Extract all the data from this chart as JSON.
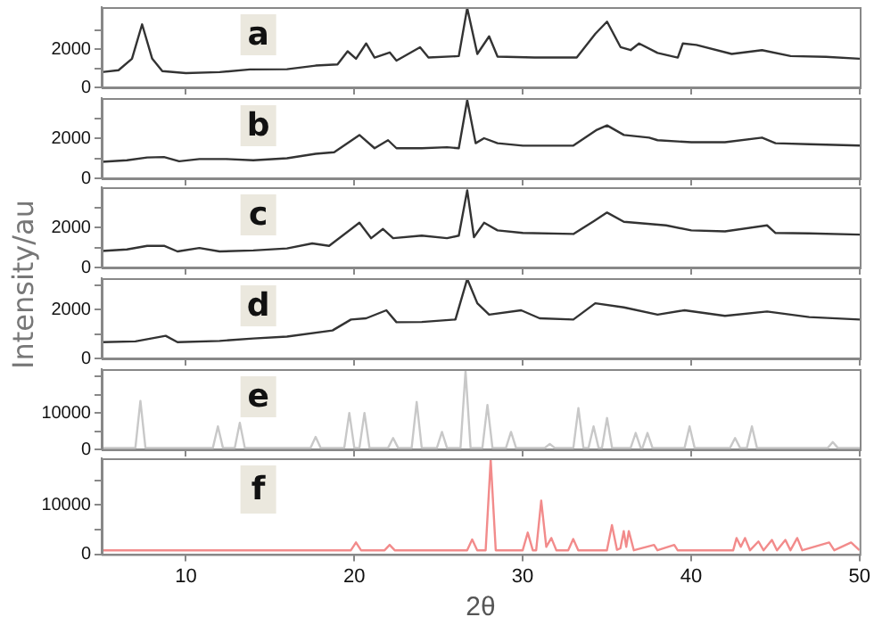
{
  "chart_data": [
    {
      "type": "line",
      "ylabel": "Intensity/au",
      "annotations": [
        "a"
      ],
      "color": "#333333",
      "xlim": [
        5,
        50
      ],
      "xticks": [
        10,
        20,
        30,
        40,
        50
      ],
      "ylim": [
        0,
        4200
      ],
      "yticks": [
        0,
        {
          "value": 1000,
          "label": null
        },
        2000,
        {
          "value": 3000,
          "label": null
        }
      ],
      "grid": false,
      "tick_labels": "y",
      "x": [
        5,
        6,
        6.8,
        7.4,
        8.0,
        8.6,
        10,
        12,
        13.8,
        16,
        17.7,
        19,
        19.6,
        20.1,
        20.7,
        21.2,
        22.1,
        22.5,
        23.9,
        24.4,
        26.2,
        26.7,
        27.3,
        28.0,
        28.5,
        30.7,
        33.2,
        34.3,
        35.0,
        35.8,
        36.4,
        36.9,
        38,
        39.2,
        39.5,
        40.3,
        42.4,
        44.2,
        45.9,
        48,
        50
      ],
      "values": [
        800,
        900,
        1500,
        3300,
        1500,
        850,
        750,
        800,
        940,
        950,
        1140,
        1200,
        1890,
        1500,
        2300,
        1560,
        1830,
        1400,
        2100,
        1560,
        1640,
        4150,
        1750,
        2670,
        1610,
        1560,
        1560,
        2800,
        3440,
        2110,
        1950,
        2300,
        1800,
        1560,
        2300,
        2220,
        1750,
        1950,
        1640,
        1600,
        1500
      ]
    },
    {
      "type": "line",
      "annotations": [
        "b"
      ],
      "color": "#333333",
      "xlim": [
        5,
        50
      ],
      "xticks": [
        10,
        20,
        30,
        40,
        50
      ],
      "ylim": [
        0,
        4000
      ],
      "yticks": [
        0,
        {
          "value": 1000,
          "label": null
        },
        2000,
        {
          "value": 3000,
          "label": null
        }
      ],
      "grid": false,
      "tick_labels": "y",
      "x": [
        5,
        6.5,
        7.7,
        8.7,
        9.6,
        10.8,
        12.4,
        14,
        16,
        17.7,
        18.8,
        20.3,
        21.2,
        22.0,
        22.5,
        24,
        25.5,
        26.2,
        26.7,
        27.2,
        27.7,
        28.5,
        30,
        33,
        34.4,
        35.0,
        36,
        37.5,
        38,
        40,
        42,
        44.2,
        45,
        47,
        50
      ],
      "values": [
        820,
        900,
        1040,
        1060,
        850,
        960,
        960,
        900,
        1000,
        1220,
        1300,
        2160,
        1500,
        1900,
        1500,
        1500,
        1550,
        1500,
        3900,
        1750,
        2000,
        1750,
        1630,
        1630,
        2420,
        2640,
        2160,
        2030,
        1900,
        1800,
        1800,
        2030,
        1750,
        1700,
        1630
      ]
    },
    {
      "type": "line",
      "annotations": [
        "c"
      ],
      "color": "#333333",
      "xlim": [
        5,
        50
      ],
      "xticks": [
        10,
        20,
        30,
        40,
        50
      ],
      "ylim": [
        0,
        4000
      ],
      "yticks": [
        0,
        {
          "value": 1000,
          "label": null
        },
        2000,
        {
          "value": 3000,
          "label": null
        }
      ],
      "grid": false,
      "tick_labels": "y",
      "x": [
        5,
        6.5,
        7.7,
        8.7,
        9.5,
        10.8,
        12,
        14,
        16,
        17.5,
        18.5,
        20.3,
        21.0,
        21.7,
        22.3,
        24,
        25.5,
        26.2,
        26.7,
        27.1,
        27.7,
        28.5,
        30,
        33,
        34.2,
        35.0,
        36,
        38.5,
        40,
        42,
        44.5,
        45,
        47,
        50
      ],
      "values": [
        820,
        900,
        1080,
        1080,
        800,
        970,
        800,
        850,
        950,
        1200,
        1080,
        2230,
        1460,
        1920,
        1460,
        1590,
        1460,
        1590,
        3850,
        1510,
        2230,
        1850,
        1720,
        1670,
        2300,
        2740,
        2280,
        2100,
        1850,
        1800,
        2100,
        1720,
        1700,
        1640
      ]
    },
    {
      "type": "line",
      "annotations": [
        "d"
      ],
      "color": "#333333",
      "xlim": [
        5,
        50
      ],
      "xticks": [
        10,
        20,
        30,
        40,
        50
      ],
      "ylim": [
        0,
        3300
      ],
      "yticks": [
        0,
        {
          "value": 1000,
          "label": null
        },
        2000,
        {
          "value": 3000,
          "label": null
        }
      ],
      "grid": false,
      "tick_labels": "y",
      "x": [
        5,
        7,
        8.8,
        9.5,
        12,
        14,
        16,
        18.7,
        19.8,
        20.7,
        21.9,
        22.5,
        24,
        26,
        26.7,
        27.3,
        28,
        29.9,
        31,
        33,
        34.3,
        36,
        38,
        39.6,
        42,
        44.5,
        47,
        50
      ],
      "values": [
        670,
        700,
        930,
        670,
        720,
        820,
        900,
        1150,
        1600,
        1650,
        1980,
        1490,
        1500,
        1600,
        3270,
        2270,
        1800,
        1980,
        1650,
        1600,
        2270,
        2100,
        1800,
        1980,
        1750,
        1930,
        1700,
        1600
      ]
    },
    {
      "type": "line",
      "annotations": [
        "e"
      ],
      "color": "#c8c8c8",
      "xlim": [
        5,
        50
      ],
      "xticks": [
        10,
        20,
        30,
        40,
        50
      ],
      "ylim": [
        0,
        22000
      ],
      "yticks": [
        0,
        {
          "value": 5000,
          "label": null
        },
        10000,
        {
          "value": 15000,
          "label": null
        },
        {
          "value": 20000,
          "label": null
        }
      ],
      "grid": false,
      "tick_labels": "y",
      "x": [
        5,
        7.0,
        7.3,
        7.6,
        11.6,
        11.9,
        12.2,
        12.9,
        13.2,
        13.5,
        17.4,
        17.7,
        18.0,
        19.4,
        19.7,
        20.0,
        20.3,
        20.6,
        20.9,
        22.0,
        22.3,
        22.6,
        23.4,
        23.7,
        24.0,
        24.9,
        25.2,
        25.5,
        26.3,
        26.6,
        26.9,
        27.6,
        27.9,
        28.2,
        29.0,
        29.3,
        29.6,
        31.3,
        31.6,
        31.9,
        33.0,
        33.3,
        33.6,
        33.9,
        34.2,
        34.5,
        34.7,
        35.0,
        35.3,
        36.4,
        36.7,
        37.0,
        37.1,
        37.4,
        37.7,
        39.6,
        39.9,
        40.2,
        42.3,
        42.6,
        42.9,
        43.3,
        43.6,
        43.9,
        48.1,
        48.4,
        48.7,
        50
      ],
      "values": [
        400,
        400,
        13300,
        400,
        400,
        6300,
        400,
        400,
        7300,
        400,
        400,
        3400,
        400,
        400,
        10000,
        400,
        400,
        10000,
        400,
        400,
        3100,
        400,
        400,
        13000,
        400,
        400,
        4800,
        400,
        400,
        21500,
        400,
        400,
        12200,
        400,
        400,
        4800,
        400,
        400,
        1500,
        400,
        400,
        11300,
        400,
        400,
        6300,
        400,
        400,
        8600,
        400,
        400,
        4500,
        400,
        400,
        4500,
        400,
        400,
        6300,
        400,
        400,
        3100,
        400,
        400,
        6300,
        400,
        400,
        2000,
        400,
        400
      ]
    },
    {
      "type": "line",
      "annotations": [
        "f"
      ],
      "xlabel": "2θ",
      "color": "#f28b8b",
      "xlim": [
        5,
        50
      ],
      "xticks": [
        10,
        20,
        30,
        40,
        50
      ],
      "ylim": [
        0,
        19500
      ],
      "yticks": [
        0,
        {
          "value": 5000,
          "label": null
        },
        10000,
        {
          "value": 15000,
          "label": null
        }
      ],
      "grid": false,
      "x": [
        5,
        19.8,
        20.1,
        20.4,
        21.8,
        22.1,
        22.4,
        26.7,
        27.0,
        27.3,
        27.8,
        28.1,
        28.4,
        30.0,
        30.3,
        30.6,
        30.8,
        31.1,
        31.4,
        31.7,
        32.0,
        32.7,
        33.0,
        33.3,
        35.0,
        35.3,
        35.6,
        35.8,
        36.0,
        36.15,
        36.3,
        36.6,
        37.8,
        38.0,
        39.0,
        39.2,
        42.5,
        42.7,
        42.95,
        43.2,
        43.5,
        44.0,
        44.3,
        44.8,
        45.1,
        45.6,
        45.9,
        46.3,
        46.6,
        48.2,
        48.5,
        49.5,
        50
      ],
      "values": [
        800,
        800,
        2400,
        800,
        800,
        1900,
        800,
        800,
        3000,
        800,
        800,
        19200,
        800,
        800,
        4400,
        800,
        800,
        10900,
        1500,
        3300,
        800,
        800,
        3100,
        800,
        800,
        5900,
        900,
        1200,
        4700,
        1500,
        4700,
        800,
        1900,
        800,
        1900,
        800,
        800,
        3300,
        1500,
        3300,
        800,
        2600,
        800,
        2900,
        800,
        2900,
        800,
        3300,
        800,
        2400,
        800,
        2400,
        800
      ]
    }
  ]
}
